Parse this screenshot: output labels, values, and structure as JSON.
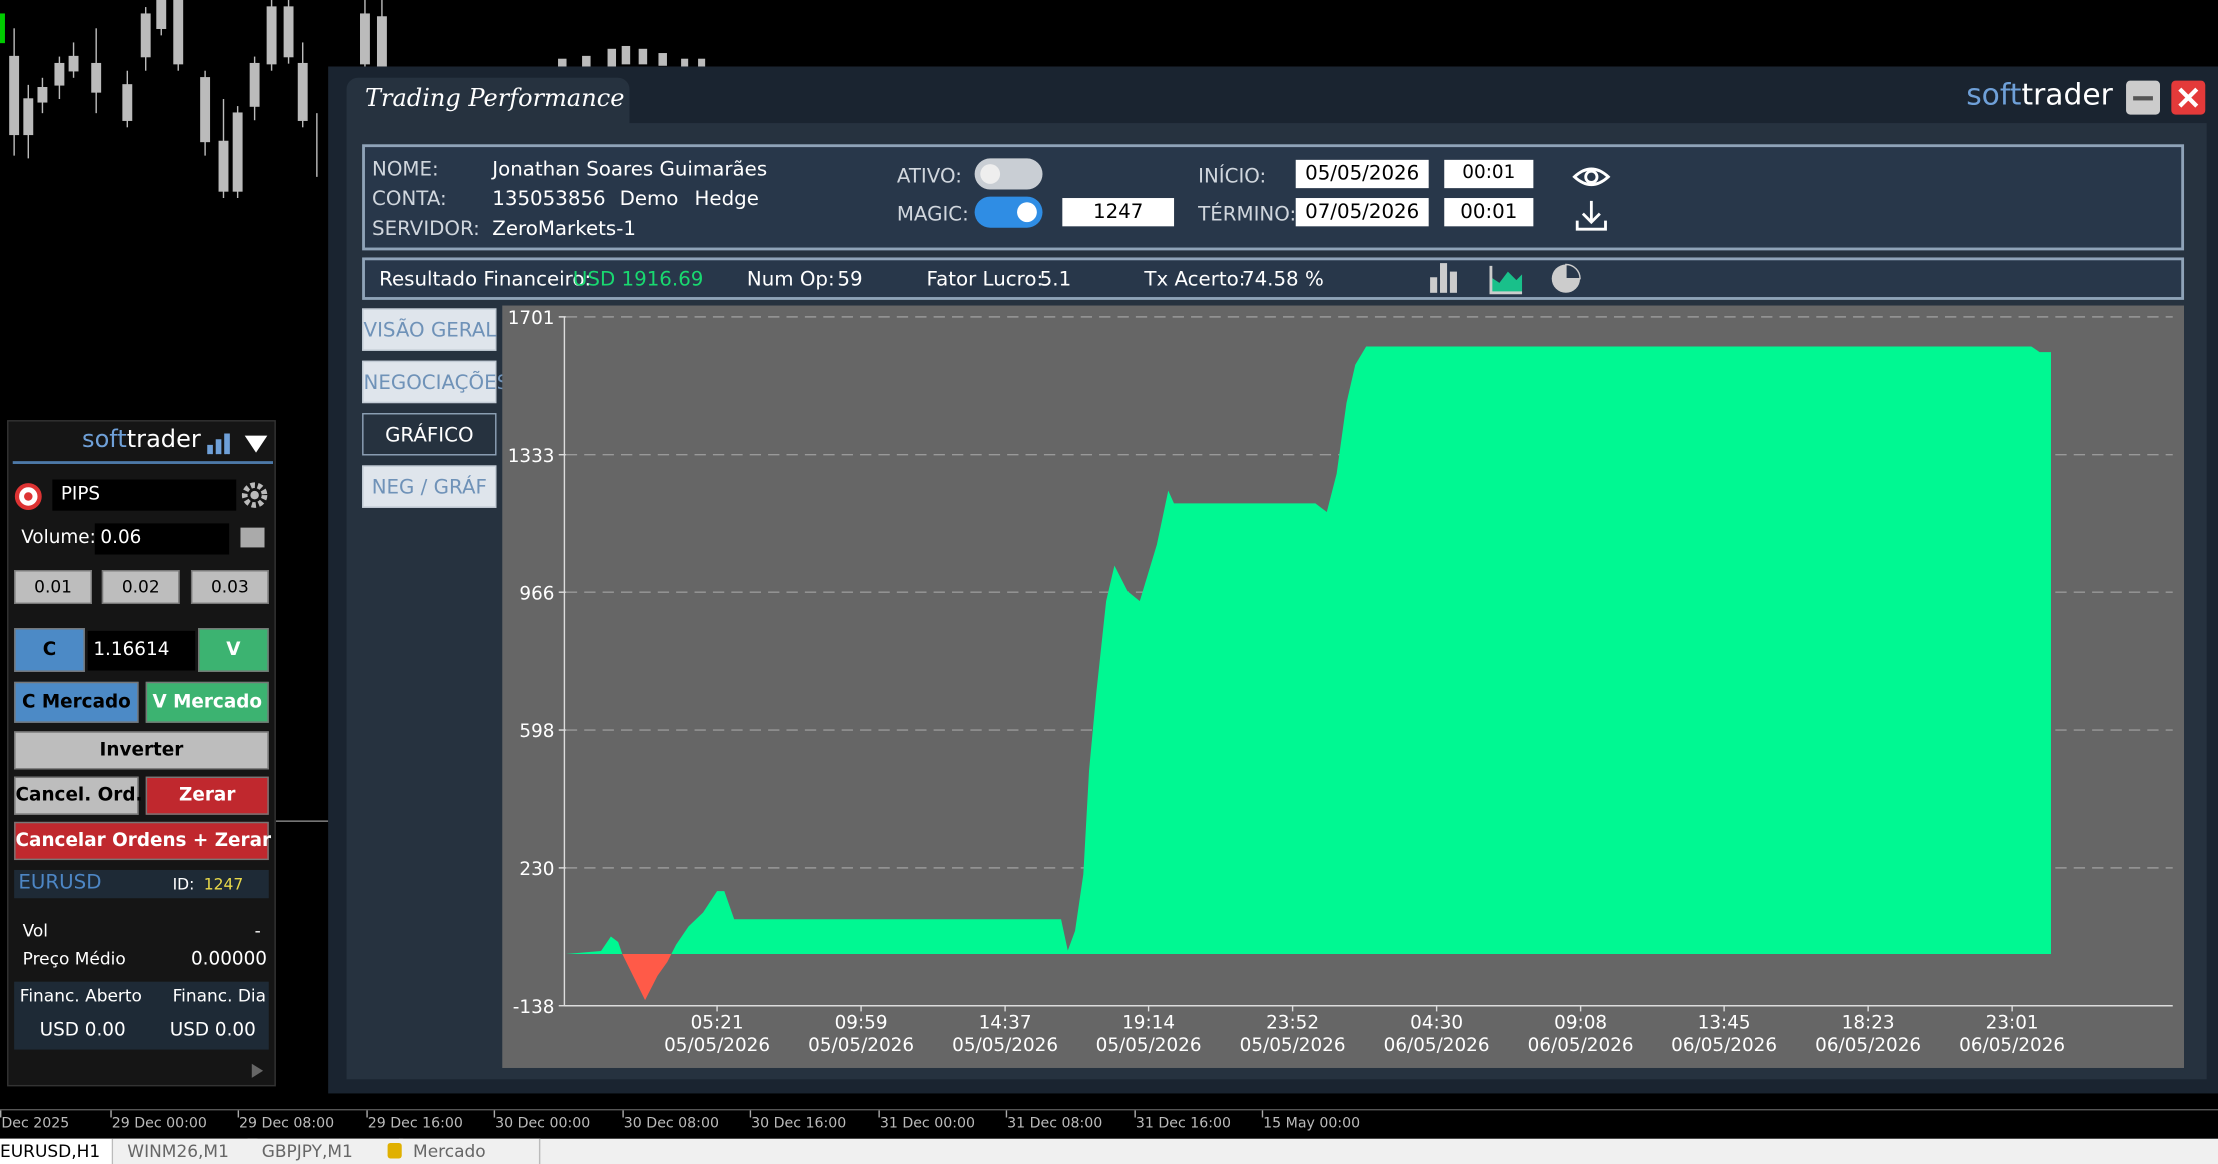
{
  "window": {
    "title": "Trading Performance",
    "logo_soft": "soft",
    "logo_trader": "trader"
  },
  "info": {
    "nome_label": "NOME:",
    "nome": "Jonathan Soares Guimarães",
    "conta_label": "CONTA:",
    "conta": "135053856",
    "conta_type": "Demo",
    "conta_mode": "Hedge",
    "servidor_label": "SERVIDOR:",
    "servidor": "ZeroMarkets-1",
    "ativo_label": "ATIVO:",
    "magic_label": "MAGIC:",
    "magic": "1247",
    "inicio_label": "INÍCIO:",
    "inicio_date": "05/05/2026",
    "inicio_time": "00:01",
    "termino_label": "TÉRMINO:",
    "termino_date": "07/05/2026",
    "termino_time": "00:01"
  },
  "stats": {
    "resultado_label": "Resultado Financeiro:",
    "resultado": "USD 1916.69",
    "numop_label": "Num Op:",
    "numop": "59",
    "fator_label": "Fator Lucro:",
    "fator": "5.1",
    "tx_label": "Tx Acerto:",
    "tx": "74.58 %"
  },
  "tabs": [
    "VISÃO GERAL",
    "NEGOCIAÇÕES",
    "GRÁFICO",
    "NEG / GRÁF"
  ],
  "chart_data": {
    "type": "area",
    "x": [
      "2026-05-05 00:29",
      "2026-05-05 01:37",
      "2026-05-05 01:56",
      "2026-05-05 02:10",
      "2026-05-05 02:18",
      "2026-05-05 03:02",
      "2026-05-05 03:26",
      "2026-05-05 03:45",
      "2026-05-05 04:02",
      "2026-05-05 04:26",
      "2026-05-05 04:54",
      "2026-05-05 05:21",
      "2026-05-05 05:35",
      "2026-05-05 05:54",
      "2026-05-05 16:25",
      "2026-05-05 16:38",
      "2026-05-05 16:52",
      "2026-05-05 17:08",
      "2026-05-05 17:19",
      "2026-05-05 17:33",
      "2026-05-05 17:52",
      "2026-05-05 18:08",
      "2026-05-05 18:33",
      "2026-05-05 18:57",
      "2026-05-05 19:30",
      "2026-05-05 19:52",
      "2026-05-05 20:03",
      "2026-05-06 00:36",
      "2026-05-06 00:58",
      "2026-05-06 01:17",
      "2026-05-06 01:36",
      "2026-05-06 01:53",
      "2026-05-06 02:14",
      "2026-05-06 23:38",
      "2026-05-06 23:54",
      "2026-05-07 00:16"
    ],
    "values": [
      0,
      8,
      47,
      32,
      0,
      -123,
      -58,
      -21,
      25,
      74,
      111,
      168,
      168,
      93,
      93,
      9,
      62,
      213,
      489,
      697,
      942,
      1037,
      969,
      942,
      1093,
      1237,
      1203,
      1203,
      1180,
      1282,
      1471,
      1573,
      1622,
      1622,
      1607,
      1607
    ],
    "positive_color": "#00f892",
    "negative_color": "#ff5a48",
    "ylim": [
      -138,
      1701
    ],
    "yticks": [
      -138,
      230,
      598,
      966,
      1333,
      1701
    ],
    "xlim": [
      "2026-05-05 00:29",
      "2026-05-07 04:11"
    ],
    "xticks": [
      {
        "value": "2026-05-05 05:21",
        "label": [
          "05:21",
          "05/05/2026"
        ]
      },
      {
        "value": "2026-05-05 09:59",
        "label": [
          "09:59",
          "05/05/2026"
        ]
      },
      {
        "value": "2026-05-05 14:37",
        "label": [
          "14:37",
          "05/05/2026"
        ]
      },
      {
        "value": "2026-05-05 19:14",
        "label": [
          "19:14",
          "05/05/2026"
        ]
      },
      {
        "value": "2026-05-05 23:52",
        "label": [
          "23:52",
          "05/05/2026"
        ]
      },
      {
        "value": "2026-05-06 04:30",
        "label": [
          "04:30",
          "06/05/2026"
        ]
      },
      {
        "value": "2026-05-06 09:08",
        "label": [
          "09:08",
          "06/05/2026"
        ]
      },
      {
        "value": "2026-05-06 13:45",
        "label": [
          "13:45",
          "06/05/2026"
        ]
      },
      {
        "value": "2026-05-06 18:23",
        "label": [
          "18:23",
          "06/05/2026"
        ]
      },
      {
        "value": "2026-05-06 23:01",
        "label": [
          "23:01",
          "06/05/2026"
        ]
      }
    ],
    "grid": true
  },
  "side_panel": {
    "logo_soft": "soft",
    "logo_trader": "trader",
    "mode": "PIPS",
    "volume_label": "Volume:",
    "volume": "0.06",
    "lots": [
      "0.01",
      "0.02",
      "0.03"
    ],
    "buy": "C",
    "price": "1.16614",
    "sell": "V",
    "buy_market": "C Mercado",
    "sell_market": "V Mercado",
    "invert": "Inverter",
    "cancel": "Cancel. Ord.",
    "zero": "Zerar",
    "cancel_zero": "Cancelar Ordens + Zerar",
    "symbol": "EURUSD",
    "id_label": "ID:",
    "id": "1247",
    "vol_label": "Vol",
    "vol": "-",
    "avg_label": "Preço Médio",
    "avg": "0.00000",
    "open_label": "Financ. Aberto",
    "day_label": "Financ. Dia",
    "open": "USD 0.00",
    "day": "USD 0.00"
  },
  "bottom_axis": [
    "Dec 2025",
    "29 Dec 00:00",
    "29 Dec 08:00",
    "29 Dec 16:00",
    "30 Dec 00:00",
    "30 Dec 08:00",
    "30 Dec 16:00",
    "31 Dec 00:00",
    "31 Dec 08:00",
    "31 Dec 16:00",
    "15 May 00:00"
  ],
  "symbol_tabs": [
    "EURUSD,H1",
    "WINM26,M1",
    "GBPJPY,M1",
    "Mercado"
  ]
}
